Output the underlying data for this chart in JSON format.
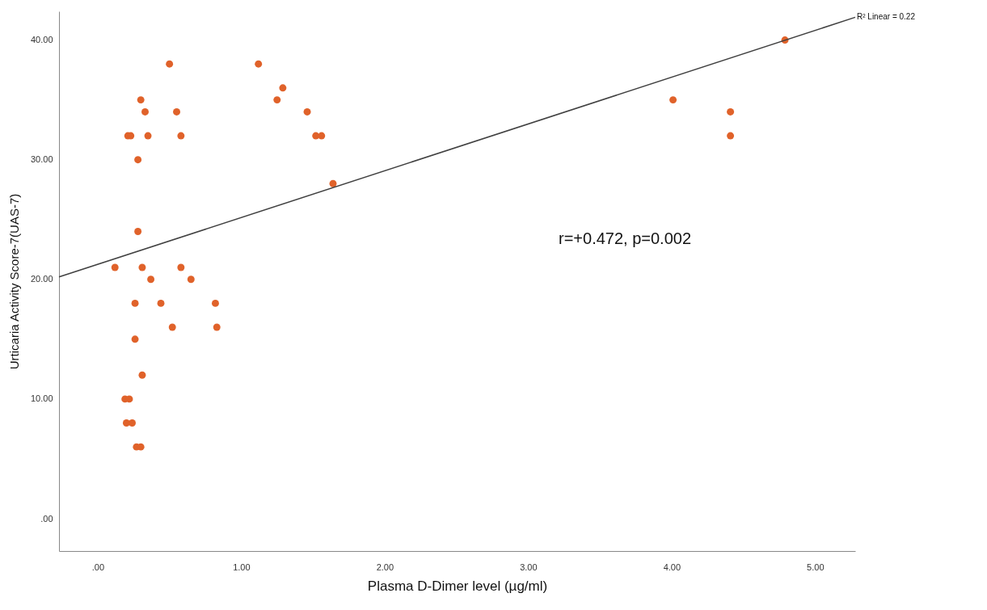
{
  "chart_data": {
    "type": "scatter",
    "xlabel": "Plasma D-Dimer level (µg/ml)",
    "ylabel": "Urticaria Activity Score-7(UAS-7)",
    "xlim": [
      -0.27,
      5.28
    ],
    "ylim": [
      -2.7,
      42.4
    ],
    "xticks": [
      {
        "value": 0,
        "label": ".00"
      },
      {
        "value": 1,
        "label": "1.00"
      },
      {
        "value": 2,
        "label": "2.00"
      },
      {
        "value": 3,
        "label": "3.00"
      },
      {
        "value": 4,
        "label": "4.00"
      },
      {
        "value": 5,
        "label": "5.00"
      }
    ],
    "yticks": [
      {
        "value": 0,
        "label": ".00"
      },
      {
        "value": 10,
        "label": "10.00"
      },
      {
        "value": 20,
        "label": "20.00"
      },
      {
        "value": 30,
        "label": "30.00"
      },
      {
        "value": 40,
        "label": "40.00"
      }
    ],
    "grid": false,
    "series": [
      {
        "marker": "circle",
        "color": "#e0622a",
        "x": [
          0.12,
          0.3,
          0.33,
          0.55,
          0.21,
          0.23,
          0.35,
          0.58,
          0.28,
          0.28,
          0.31,
          0.58,
          0.37,
          0.65,
          0.26,
          0.44,
          0.82,
          0.52,
          0.83,
          0.26,
          0.31,
          0.19,
          0.22,
          0.2,
          0.24,
          0.27,
          0.3,
          0.5,
          1.12,
          1.29,
          1.25,
          1.46,
          1.52,
          1.56,
          1.64,
          4.01,
          4.41,
          4.41,
          4.79
        ],
        "values": [
          21,
          35,
          34,
          34,
          32,
          32,
          32,
          32,
          30,
          24,
          21,
          21,
          20,
          20,
          18,
          18,
          18,
          16,
          16,
          15,
          12,
          10,
          10,
          8,
          8,
          6,
          6,
          38,
          38,
          36,
          35,
          34,
          32,
          32,
          28,
          35,
          34,
          32,
          40
        ]
      },
      {
        "type": "line",
        "color": "#404040",
        "x": [
          -0.27,
          5.28
        ],
        "values": [
          20.2,
          41.9
        ]
      }
    ],
    "annotations": [
      {
        "text": "R² Linear = 0.22",
        "x": 5.28,
        "y": 41.9
      },
      "r=+0.472, p=0.002"
    ]
  }
}
